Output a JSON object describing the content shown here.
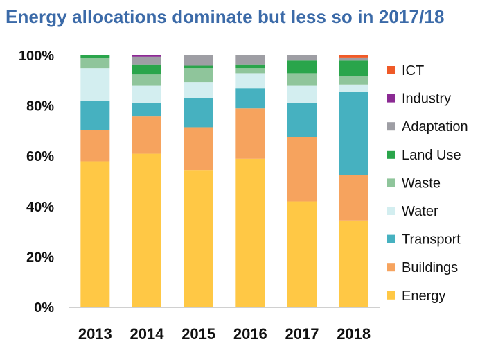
{
  "chart_data": {
    "type": "bar",
    "stacked": true,
    "normalized": true,
    "title": "Energy allocations dominate but less so in 2017/18",
    "categories": [
      "2013",
      "2014",
      "2015",
      "2016",
      "2017",
      "2018"
    ],
    "y_ticks": [
      "0%",
      "20%",
      "40%",
      "60%",
      "80%",
      "100%"
    ],
    "ylim": [
      0,
      100
    ],
    "grid": false,
    "legend_position": "right",
    "series": [
      {
        "name": "Energy",
        "color": "#ffc845",
        "values": [
          58,
          61,
          54.5,
          59,
          42,
          34.5
        ]
      },
      {
        "name": "Buildings",
        "color": "#f6a35e",
        "values": [
          12.5,
          15,
          17,
          20,
          25.5,
          18
        ]
      },
      {
        "name": "Transport",
        "color": "#46b1c0",
        "values": [
          11.5,
          5,
          11.5,
          8,
          13.5,
          33
        ]
      },
      {
        "name": "Water",
        "color": "#d3eef0",
        "values": [
          13,
          7,
          6.5,
          6,
          7,
          3
        ]
      },
      {
        "name": "Waste",
        "color": "#8fc59b",
        "values": [
          4,
          4.5,
          5.5,
          2,
          5,
          3.5
        ]
      },
      {
        "name": "Land Use",
        "color": "#2aa54b",
        "values": [
          1,
          4,
          1,
          1.5,
          5,
          6
        ]
      },
      {
        "name": "Adaptation",
        "color": "#9e9ea4",
        "values": [
          0,
          3,
          4,
          3.5,
          2,
          1.2
        ]
      },
      {
        "name": "Industry",
        "color": "#8b2a93",
        "values": [
          0,
          0.5,
          0,
          0,
          0,
          0
        ]
      },
      {
        "name": "ICT",
        "color": "#ef5a28",
        "values": [
          0,
          0,
          0,
          0,
          0,
          0.8
        ]
      }
    ],
    "legend_order": [
      "ICT",
      "Industry",
      "Adaptation",
      "Land Use",
      "Waste",
      "Water",
      "Transport",
      "Buildings",
      "Energy"
    ]
  }
}
